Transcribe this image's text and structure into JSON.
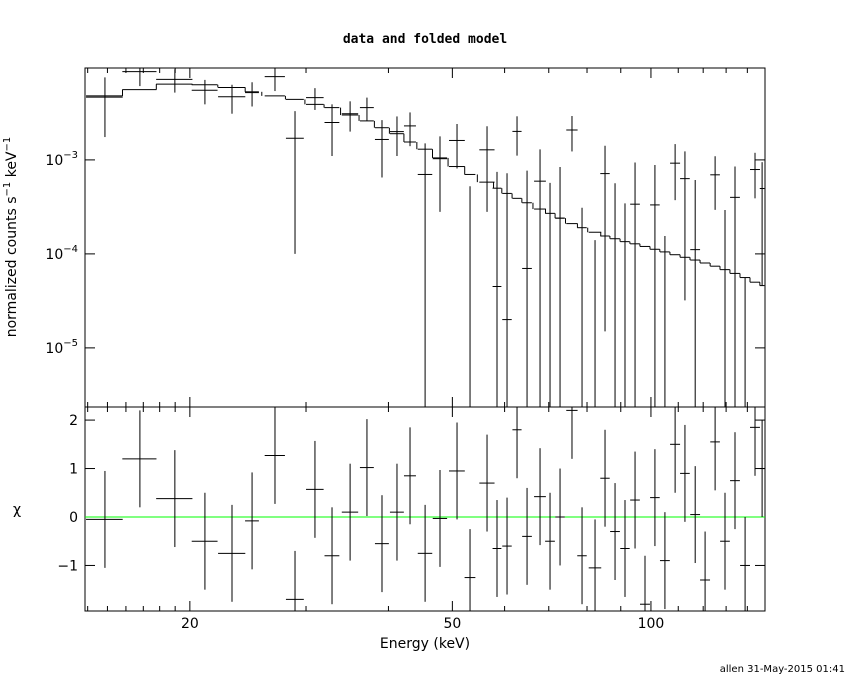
{
  "chart_data": [
    {
      "type": "spectrum",
      "title": "data and folded model",
      "ylabel": [
        "normalized counts s",
        "−1",
        " keV",
        "−1"
      ],
      "log_x": true,
      "log_y": true,
      "xlim": [
        13.87,
        148.9
      ],
      "ylim": [
        2.35e-06,
        0.0095
      ],
      "yticks": [
        {
          "value": 0.001,
          "label": "10",
          "exponent": "−3"
        },
        {
          "value": 0.0001,
          "label": "10",
          "exponent": "−4"
        },
        {
          "value": 1e-05,
          "label": "10",
          "exponent": "−5"
        }
      ],
      "color": "#000000",
      "x": [
        14.87,
        16.8,
        18.98,
        21.08,
        23.17,
        24.85,
        26.92,
        28.87,
        30.95,
        32.85,
        34.99,
        37.11,
        39.11,
        41.21,
        43.13,
        45.46,
        47.89,
        50.82,
        53.18,
        56.43,
        58.43,
        60.51,
        62.66,
        64.89,
        67.9,
        70.31,
        72.81,
        75.91,
        78.62,
        82.27,
        85.19,
        88.22,
        91.34,
        94.6,
        97.95,
        101.4,
        105.0,
        108.8,
        112.6,
        116.7,
        120.8,
        125.1,
        129.5,
        134.1,
        138.9,
        143.8,
        147.4
      ],
      "xerr": [
        0.95,
        1.0,
        1.2,
        0.95,
        1.1,
        0.6,
        0.95,
        0.9,
        0.95,
        0.85,
        1.0,
        0.9,
        0.95,
        1.0,
        0.9,
        1.15,
        1.2,
        1.4,
        1.0,
        1.5,
        0.9,
        1.0,
        1.0,
        1.1,
        1.4,
        1.2,
        1.2,
        1.5,
        1.3,
        1.8,
        1.4,
        1.5,
        1.5,
        1.6,
        1.7,
        1.7,
        1.8,
        1.9,
        1.9,
        2.0,
        2.1,
        2.1,
        2.2,
        2.3,
        2.4,
        2.5,
        1.2
      ],
      "values": [
        0.00465,
        0.0087,
        0.0072,
        0.0055,
        0.0047,
        0.0052,
        0.0077,
        0.0017,
        0.0046,
        0.0025,
        0.0031,
        0.0036,
        0.00165,
        0.002,
        0.0023,
        0.0007,
        0.00103,
        0.00161,
        -0.000175,
        0.00128,
        4.5e-05,
        2e-05,
        0.00201,
        7e-05,
        0.000594,
        -3e-05,
        0.00024,
        0.00208,
        -0.00029,
        -0.00046,
        0.000715,
        -3.5e-05,
        -0.000255,
        0.000338,
        -0.00087,
        0.000332,
        -0.000345,
        0.000923,
        0.000632,
        0.000111,
        -0.00057,
        0.000694,
        -0.000157,
        0.0003995,
        -0.000444,
        0.00079,
        0.000496
      ],
      "yerr": [
        0.0029,
        0.0026,
        0.002,
        0.0016,
        0.0016,
        0.0015,
        0.0023,
        0.0016,
        0.0012,
        0.0014,
        0.0011,
        0.001,
        0.001,
        0.0009,
        0.0009,
        0.0008,
        0.00075,
        0.0008,
        0.0007,
        0.001,
        0.0007,
        0.0007,
        0.0009,
        0.0007,
        0.0007,
        0.0006,
        0.0006,
        0.00085,
        0.0006,
        0.0006,
        0.0007,
        0.0006,
        0.0006,
        0.0006,
        0.00055,
        0.00055,
        0.0005,
        0.00055,
        0.0006,
        0.0005,
        0.0005,
        0.0004,
        0.00045,
        0.00045,
        0.0005,
        0.0004,
        0.00045
      ],
      "model": [
        0.0048,
        0.0056,
        0.0064,
        0.0063,
        0.0059,
        0.0053,
        0.0048,
        0.0044,
        0.0039,
        0.0036,
        0.003,
        0.0026,
        0.0022,
        0.0019,
        0.00155,
        0.0013,
        0.00105,
        0.00085,
        0.0007,
        0.00058,
        0.0005,
        0.00044,
        0.00039,
        0.00035,
        0.0003,
        0.00027,
        0.00024,
        0.00021,
        0.00019,
        0.00017,
        0.000155,
        0.000145,
        0.000135,
        0.000128,
        0.00012,
        0.000112,
        0.000105,
        9.8e-05,
        9.2e-05,
        8.6e-05,
        8e-05,
        7.4e-05,
        6.8e-05,
        6.2e-05,
        5.6e-05,
        5e-05,
        4.6e-05
      ]
    },
    {
      "type": "residual",
      "ylabel": "χ",
      "xlabel": "Energy (keV)",
      "xticks": [
        20,
        50,
        100
      ],
      "xminorticks": [
        14,
        15,
        16,
        17,
        18,
        19,
        30,
        40,
        60,
        70,
        80,
        90,
        110,
        120,
        130,
        140
      ],
      "ylim": [
        -1.94,
        2.27
      ],
      "yticks": [
        {
          "value": -1,
          "label": "−1"
        },
        0,
        1,
        2
      ],
      "values": [
        -0.05,
        1.2,
        0.38,
        -0.5,
        -0.75,
        -0.08,
        1.27,
        -1.7,
        0.57,
        -0.8,
        0.1,
        1.02,
        -0.55,
        0.1,
        0.85,
        -0.75,
        -0.03,
        0.95,
        -1.25,
        0.7,
        -0.65,
        -0.6,
        1.8,
        -0.4,
        0.42,
        -0.5,
        0.0,
        2.2,
        -0.8,
        -1.05,
        0.8,
        -0.3,
        -0.65,
        0.35,
        -1.8,
        0.4,
        -0.9,
        1.5,
        0.9,
        0.05,
        -1.3,
        1.55,
        -0.5,
        0.75,
        -1.0,
        1.85,
        1.0
      ],
      "yerr": 1,
      "reference_line": 0,
      "reference_color": "#00ff00",
      "color": "#000000"
    }
  ],
  "footer": "allen 31-May-2015 01:41"
}
